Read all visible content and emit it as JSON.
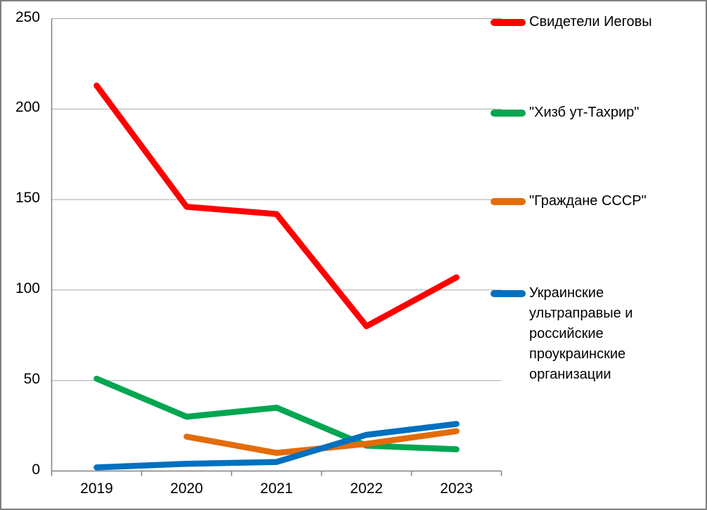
{
  "chart_data": {
    "type": "line",
    "categories": [
      "2019",
      "2020",
      "2021",
      "2022",
      "2023"
    ],
    "series": [
      {
        "name": "Свидетели Иеговы",
        "color": "#FF0000",
        "values": [
          213,
          146,
          142,
          80,
          107
        ]
      },
      {
        "name": "\"Хизб ут-Тахрир\"",
        "color": "#00A650",
        "values": [
          51,
          30,
          35,
          14,
          12
        ]
      },
      {
        "name": "\"Граждане СССР\"",
        "color": "#E36C09",
        "values": [
          null,
          19,
          10,
          15,
          22
        ]
      },
      {
        "name": "Украинские ультраправые и российские проукраинские организации",
        "color": "#0070C0",
        "values": [
          2,
          4,
          5,
          20,
          26
        ]
      }
    ],
    "title": "",
    "xlabel": "",
    "ylabel": "",
    "ylim": [
      0,
      250
    ],
    "ytick_step": 50,
    "y_tick_labels": [
      "0",
      "50",
      "100",
      "150",
      "200",
      "250"
    ],
    "grid": true,
    "legend_position": "right"
  },
  "colors": {
    "axis": "#808080",
    "gridline": "#A6A6A6",
    "frame_border": "#7F7F7F",
    "background": "#FFFFFF",
    "text": "#000000"
  }
}
